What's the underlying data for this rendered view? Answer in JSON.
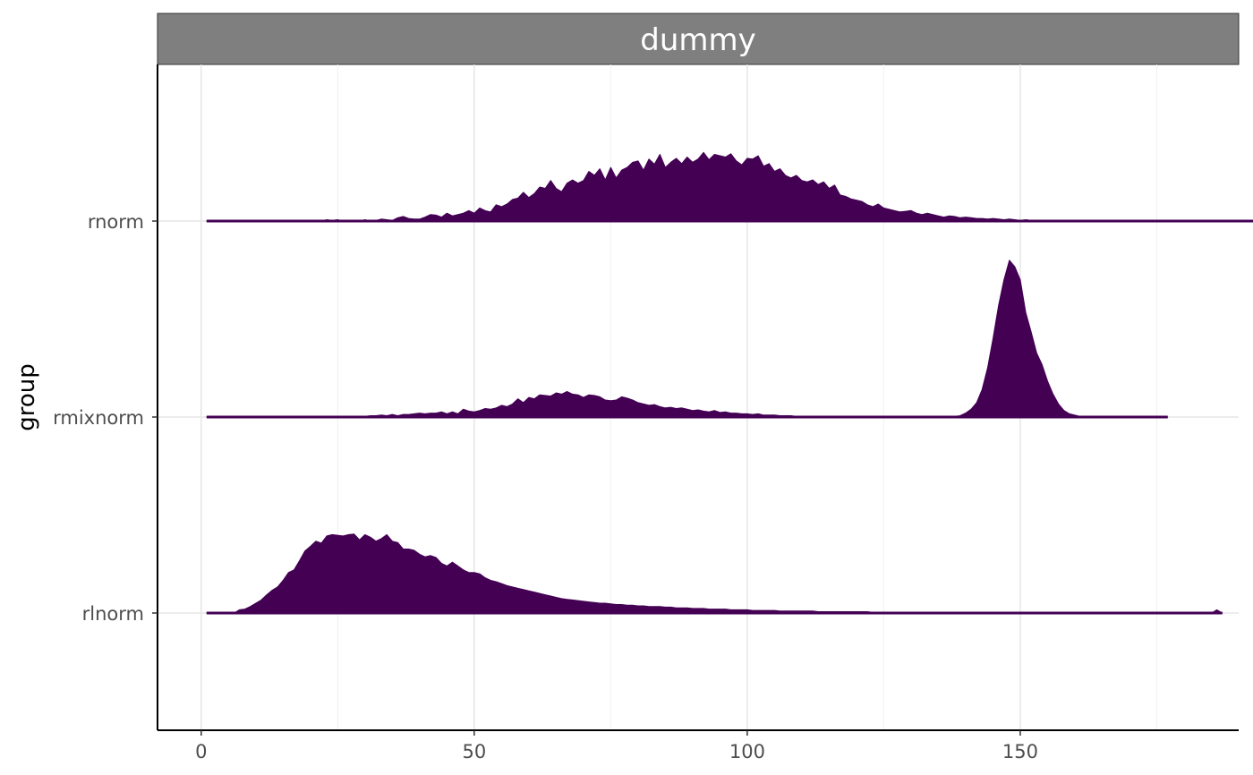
{
  "chart_data": {
    "type": "area",
    "facet_title": "dummy",
    "xlabel": "",
    "ylabel": "group",
    "x_ticks": [
      0,
      50,
      100,
      150
    ],
    "x_range": [
      -8,
      190
    ],
    "grid": true,
    "legend": "none",
    "fill_color": "#440154",
    "x_step": 1,
    "x_start": 1,
    "series": [
      {
        "name": "rnorm",
        "values": [
          0,
          0,
          0,
          0,
          0,
          0,
          0,
          0,
          0,
          0,
          0,
          0,
          0,
          0,
          0,
          0,
          0,
          0,
          0.01,
          0,
          0,
          0,
          0.02,
          0.01,
          0.02,
          0,
          0.01,
          0.01,
          0,
          0.02,
          0,
          0.01,
          0.03,
          0.02,
          0.01,
          0.05,
          0.07,
          0.04,
          0.03,
          0.03,
          0.06,
          0.1,
          0.09,
          0.06,
          0.12,
          0.08,
          0.1,
          0.12,
          0.16,
          0.12,
          0.2,
          0.16,
          0.14,
          0.25,
          0.22,
          0.26,
          0.33,
          0.35,
          0.44,
          0.36,
          0.42,
          0.52,
          0.5,
          0.62,
          0.5,
          0.45,
          0.58,
          0.63,
          0.58,
          0.62,
          0.76,
          0.7,
          0.8,
          0.63,
          0.82,
          0.66,
          0.78,
          0.82,
          0.9,
          0.92,
          0.78,
          0.95,
          0.87,
          1.02,
          0.82,
          0.9,
          0.96,
          0.88,
          0.98,
          0.9,
          0.95,
          1.05,
          0.94,
          1.02,
          1.0,
          0.98,
          1.03,
          0.92,
          0.86,
          0.96,
          0.95,
          1.0,
          0.84,
          0.88,
          0.76,
          0.8,
          0.7,
          0.66,
          0.7,
          0.62,
          0.6,
          0.63,
          0.56,
          0.6,
          0.5,
          0.55,
          0.4,
          0.38,
          0.34,
          0.32,
          0.3,
          0.25,
          0.22,
          0.26,
          0.2,
          0.18,
          0.16,
          0.14,
          0.15,
          0.16,
          0.12,
          0.1,
          0.12,
          0.1,
          0.08,
          0.06,
          0.08,
          0.07,
          0.05,
          0.06,
          0.05,
          0.04,
          0.04,
          0.03,
          0.04,
          0.03,
          0.02,
          0.03,
          0.02,
          0.01,
          0.02,
          0.01,
          0.01,
          0.01,
          0,
          0.01,
          0,
          0.01,
          0,
          0,
          0,
          0,
          0,
          0,
          0,
          0,
          0,
          0,
          0,
          0,
          0,
          0,
          0,
          0,
          0,
          0,
          0,
          0,
          0,
          0,
          0,
          0,
          0,
          0,
          0,
          0,
          0,
          0,
          0,
          0,
          0,
          0,
          0,
          0
        ]
      },
      {
        "name": "rmixnorm",
        "values": [
          0,
          0,
          0,
          0,
          0,
          0,
          0,
          0,
          0,
          0,
          0,
          0,
          0,
          0,
          0,
          0,
          0,
          0,
          0,
          0,
          0,
          0,
          0,
          0,
          0.01,
          0.01,
          0.01,
          0.01,
          0.01,
          0.01,
          0.02,
          0.02,
          0.03,
          0.02,
          0.04,
          0.02,
          0.04,
          0.04,
          0.05,
          0.06,
          0.05,
          0.06,
          0.06,
          0.08,
          0.05,
          0.08,
          0.05,
          0.12,
          0.09,
          0.08,
          0.1,
          0.13,
          0.12,
          0.14,
          0.18,
          0.16,
          0.2,
          0.28,
          0.22,
          0.3,
          0.28,
          0.34,
          0.33,
          0.32,
          0.37,
          0.35,
          0.39,
          0.35,
          0.34,
          0.3,
          0.34,
          0.33,
          0.31,
          0.26,
          0.25,
          0.26,
          0.31,
          0.29,
          0.26,
          0.22,
          0.2,
          0.18,
          0.19,
          0.16,
          0.14,
          0.15,
          0.13,
          0.14,
          0.12,
          0.1,
          0.11,
          0.09,
          0.08,
          0.1,
          0.07,
          0.08,
          0.06,
          0.06,
          0.05,
          0.05,
          0.04,
          0.05,
          0.03,
          0.03,
          0.03,
          0.02,
          0.02,
          0.02,
          0.01,
          0.01,
          0.01,
          0.01,
          0.01,
          0.01,
          0.01,
          0.01,
          0,
          0,
          0,
          0,
          0,
          0,
          0,
          0,
          0,
          0,
          0,
          0,
          0,
          0,
          0,
          0,
          0,
          0,
          0,
          0,
          0,
          0.01,
          0.02,
          0.06,
          0.12,
          0.22,
          0.42,
          0.75,
          1.2,
          1.7,
          2.1,
          2.4,
          2.3,
          2.1,
          1.6,
          1.3,
          0.98,
          0.8,
          0.55,
          0.35,
          0.2,
          0.1,
          0.05,
          0.03,
          0.01,
          0,
          0,
          0,
          0,
          0,
          0,
          0,
          0,
          0,
          0,
          0,
          0,
          0,
          0,
          0,
          0
        ]
      },
      {
        "name": "rlnorm",
        "values": [
          0,
          0,
          0,
          0,
          0,
          0,
          0.05,
          0.06,
          0.1,
          0.15,
          0.2,
          0.28,
          0.35,
          0.4,
          0.5,
          0.62,
          0.66,
          0.8,
          0.95,
          1.02,
          1.1,
          1.07,
          1.18,
          1.2,
          1.19,
          1.18,
          1.2,
          1.21,
          1.12,
          1.2,
          1.16,
          1.1,
          1.14,
          1.2,
          1.1,
          1.08,
          0.98,
          0.98,
          0.96,
          0.9,
          0.86,
          0.88,
          0.85,
          0.76,
          0.72,
          0.78,
          0.72,
          0.66,
          0.62,
          0.62,
          0.6,
          0.54,
          0.5,
          0.48,
          0.45,
          0.42,
          0.4,
          0.38,
          0.36,
          0.34,
          0.32,
          0.3,
          0.28,
          0.26,
          0.24,
          0.22,
          0.21,
          0.2,
          0.19,
          0.18,
          0.17,
          0.16,
          0.15,
          0.15,
          0.14,
          0.13,
          0.13,
          0.12,
          0.12,
          0.11,
          0.11,
          0.1,
          0.1,
          0.1,
          0.09,
          0.09,
          0.08,
          0.08,
          0.08,
          0.07,
          0.07,
          0.07,
          0.06,
          0.06,
          0.06,
          0.06,
          0.05,
          0.05,
          0.05,
          0.05,
          0.04,
          0.04,
          0.04,
          0.04,
          0.04,
          0.03,
          0.03,
          0.03,
          0.03,
          0.03,
          0.03,
          0.03,
          0.02,
          0.02,
          0.02,
          0.02,
          0.02,
          0.02,
          0.02,
          0.02,
          0.02,
          0.02,
          0.01,
          0.01,
          0.01,
          0.01,
          0.01,
          0.01,
          0.01,
          0.01,
          0.01,
          0.01,
          0.01,
          0.01,
          0.01,
          0.01,
          0.01,
          0.01,
          0.01,
          0.01,
          0.01,
          0.01,
          0.01,
          0.01,
          0.01,
          0.01,
          0.01,
          0.01,
          0.01,
          0.01,
          0.01,
          0.01,
          0.01,
          0.01,
          0.01,
          0.01,
          0.01,
          0.01,
          0,
          0,
          0,
          0,
          0,
          0,
          0,
          0,
          0,
          0,
          0,
          0,
          0,
          0,
          0,
          0,
          0,
          0,
          0,
          0,
          0,
          0,
          0,
          0,
          0,
          0,
          0,
          0.05,
          0
        ]
      }
    ]
  }
}
